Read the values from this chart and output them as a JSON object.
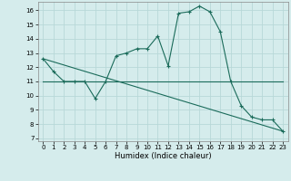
{
  "xlabel": "Humidex (Indice chaleur)",
  "background_color": "#d5ecec",
  "grid_color": "#b8d8d8",
  "line_color": "#1a6b5a",
  "xlim": [
    -0.5,
    23.5
  ],
  "ylim": [
    6.8,
    16.6
  ],
  "yticks": [
    7,
    8,
    9,
    10,
    11,
    12,
    13,
    14,
    15,
    16
  ],
  "xticks": [
    0,
    1,
    2,
    3,
    4,
    5,
    6,
    7,
    8,
    9,
    10,
    11,
    12,
    13,
    14,
    15,
    16,
    17,
    18,
    19,
    20,
    21,
    22,
    23
  ],
  "line1_x": [
    0,
    1,
    2,
    3,
    4,
    5,
    6,
    7,
    8,
    9,
    10,
    11,
    12,
    13,
    14,
    15,
    16,
    17,
    18,
    19,
    20,
    21,
    22,
    23
  ],
  "line1_y": [
    12.6,
    11.7,
    11.0,
    11.0,
    11.0,
    9.8,
    11.0,
    12.8,
    13.0,
    13.3,
    13.3,
    14.2,
    12.1,
    15.8,
    15.9,
    16.3,
    15.9,
    14.5,
    11.0,
    9.3,
    8.5,
    8.3,
    8.3,
    7.5
  ],
  "line2_x": [
    0,
    23
  ],
  "line2_y": [
    12.6,
    7.5
  ],
  "line3_x": [
    0,
    17,
    23
  ],
  "line3_y": [
    11.0,
    11.0,
    11.0
  ]
}
